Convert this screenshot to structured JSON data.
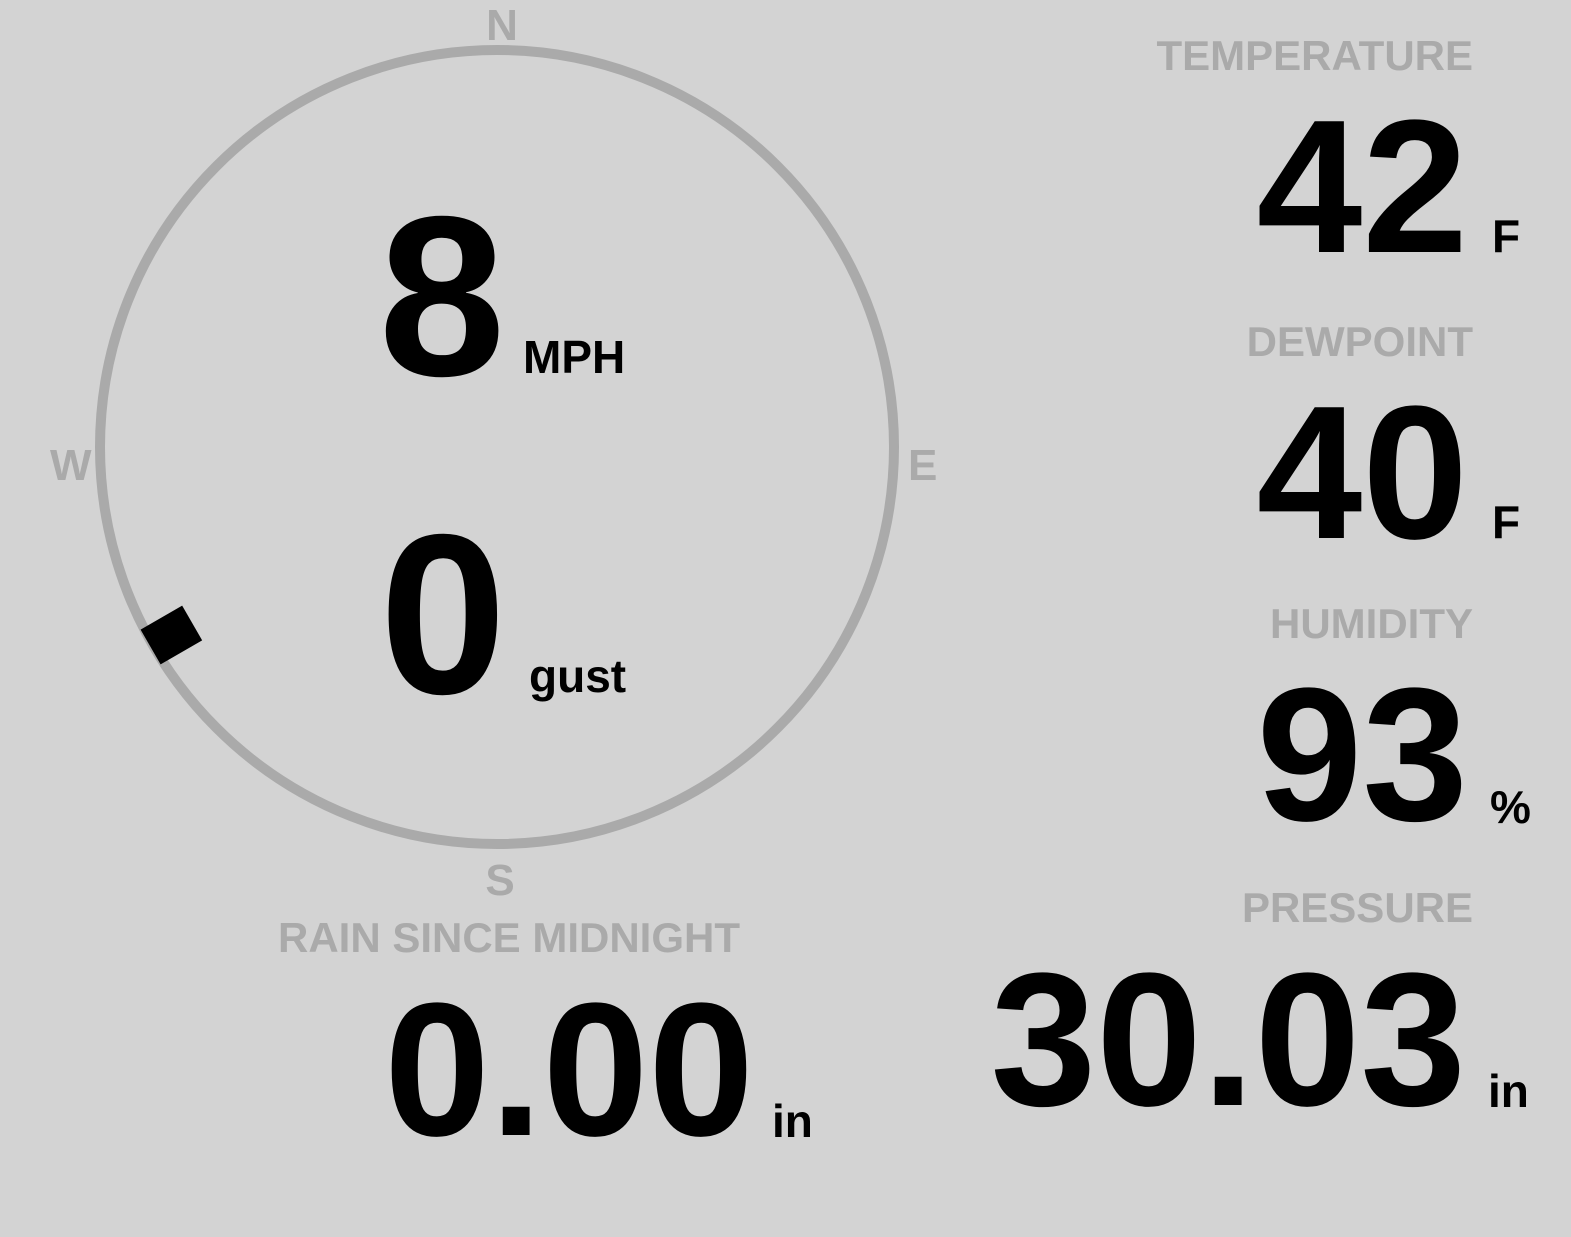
{
  "compass": {
    "north": "N",
    "south": "S",
    "east": "E",
    "west": "W",
    "wind_direction_deg": 240,
    "ring_color": "#aaaaaa",
    "marker_color": "#000000"
  },
  "wind": {
    "speed": "8",
    "speed_unit": "MPH",
    "gust": "0",
    "gust_unit": "gust"
  },
  "temperature": {
    "label": "TEMPERATURE",
    "value": "42",
    "unit": "F"
  },
  "dewpoint": {
    "label": "DEWPOINT",
    "value": "40",
    "unit": "F"
  },
  "humidity": {
    "label": "HUMIDITY",
    "value": "93",
    "unit": "%"
  },
  "rain": {
    "label": "RAIN SINCE MIDNIGHT",
    "value": "0.00",
    "unit": "in"
  },
  "pressure": {
    "label": "PRESSURE",
    "value": "30.03",
    "unit": "in"
  },
  "colors": {
    "background": "#d3d3d3",
    "label": "#aaaaaa",
    "value": "#000000"
  }
}
